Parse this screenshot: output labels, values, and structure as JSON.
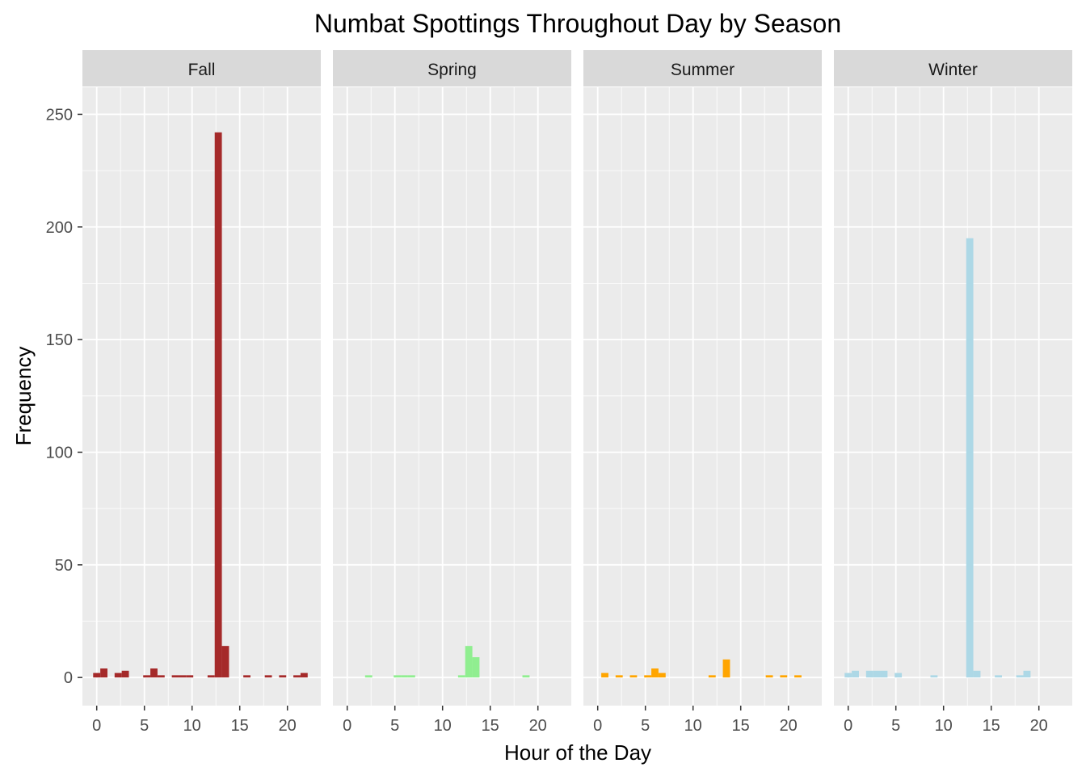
{
  "chart_data": {
    "type": "bar",
    "title": "Numbat Spottings Throughout Day by Season",
    "xlabel": "Hour of the Day",
    "ylabel": "Frequency",
    "xlim": [
      -1.5,
      23.5
    ],
    "ylim": [
      -12.5,
      262
    ],
    "x_ticks": [
      0,
      5,
      10,
      15,
      20
    ],
    "x_tick_labels": [
      "0",
      "5",
      "10",
      "15",
      "20"
    ],
    "y_ticks": [
      0,
      50,
      100,
      150,
      200,
      250
    ],
    "y_tick_labels": [
      "0",
      "50",
      "100",
      "150",
      "200",
      "250"
    ],
    "grid": true,
    "legend": "none",
    "bin_width": 0.75,
    "facets": [
      {
        "name": "Fall",
        "color": "#A52A2A",
        "x": [
          0,
          0.75,
          2.25,
          3,
          5.25,
          6,
          6.75,
          8.25,
          9,
          9.75,
          12,
          12.75,
          13.5,
          15.75,
          18,
          19.5,
          21,
          21.75
        ],
        "values": [
          2,
          4,
          2,
          3,
          1,
          4,
          1,
          1,
          1,
          1,
          1,
          242,
          14,
          1,
          1,
          1,
          1,
          2
        ]
      },
      {
        "name": "Spring",
        "color": "#90EE90",
        "x": [
          2.25,
          5.25,
          6,
          6.75,
          12,
          12.75,
          13.5,
          18.75
        ],
        "values": [
          1,
          1,
          1,
          1,
          1,
          14,
          9,
          1
        ]
      },
      {
        "name": "Summer",
        "color": "#FFA500",
        "x": [
          0.75,
          2.25,
          3.75,
          5.25,
          6,
          6.75,
          12,
          13.5,
          18,
          19.5,
          21
        ],
        "values": [
          2,
          1,
          1,
          1,
          4,
          2,
          1,
          8,
          1,
          1,
          1
        ]
      },
      {
        "name": "Winter",
        "color": "#ADD8E6",
        "x": [
          0,
          0.75,
          2.25,
          3,
          3.75,
          5.25,
          9,
          12.75,
          13.5,
          15.75,
          18,
          18.75
        ],
        "values": [
          2,
          3,
          3,
          3,
          3,
          2,
          1,
          195,
          3,
          1,
          1,
          3
        ]
      }
    ]
  }
}
